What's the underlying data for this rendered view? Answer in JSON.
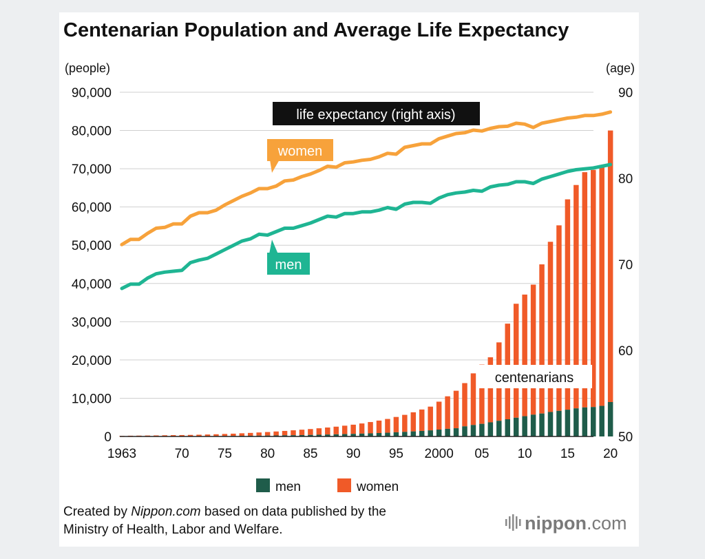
{
  "colors": {
    "women_bar": "#f05a28",
    "men_bar": "#1f5c4a",
    "women_line": "#f7a23b",
    "men_line": "#1fb593",
    "text": "#111111"
  },
  "chart_data": {
    "type": "bar+line",
    "title": "Centenarian Population and Average Life Expectancy",
    "left_unit": "(people)",
    "right_unit": "(age)",
    "left_ylim": [
      0,
      90000
    ],
    "right_ylim": [
      50,
      90
    ],
    "left_ticks": [
      "0",
      "10,000",
      "20,000",
      "30,000",
      "40,000",
      "50,000",
      "60,000",
      "70,000",
      "80,000",
      "90,000"
    ],
    "right_ticks": [
      "50",
      "60",
      "70",
      "80",
      "90"
    ],
    "x_tick_labels": [
      "1963",
      "70",
      "75",
      "80",
      "85",
      "90",
      "95",
      "2000",
      "05",
      "10",
      "15",
      "20"
    ],
    "x_tick_years": [
      1963,
      1970,
      1975,
      1980,
      1985,
      1990,
      1995,
      2000,
      2005,
      2010,
      2015,
      2020
    ],
    "years": [
      1963,
      1964,
      1965,
      1966,
      1967,
      1968,
      1969,
      1970,
      1971,
      1972,
      1973,
      1974,
      1975,
      1976,
      1977,
      1978,
      1979,
      1980,
      1981,
      1982,
      1983,
      1984,
      1985,
      1986,
      1987,
      1988,
      1989,
      1990,
      1991,
      1992,
      1993,
      1994,
      1995,
      1996,
      1997,
      1998,
      1999,
      2000,
      2001,
      2002,
      2003,
      2004,
      2005,
      2006,
      2007,
      2008,
      2009,
      2010,
      2011,
      2012,
      2013,
      2014,
      2015,
      2016,
      2017,
      2018,
      2019,
      2020
    ],
    "centenarians_men": [
      20,
      30,
      35,
      40,
      45,
      55,
      60,
      70,
      80,
      90,
      105,
      120,
      135,
      150,
      170,
      190,
      215,
      240,
      270,
      300,
      330,
      370,
      410,
      460,
      510,
      560,
      620,
      680,
      750,
      820,
      900,
      980,
      1100,
      1200,
      1320,
      1450,
      1600,
      1800,
      2000,
      2150,
      2650,
      3000,
      3300,
      3700,
      4100,
      4500,
      4900,
      5300,
      5700,
      6000,
      6400,
      6700,
      7000,
      7350,
      7600,
      7700,
      8000,
      9000
    ],
    "centenarians_women": [
      130,
      170,
      190,
      210,
      230,
      260,
      290,
      300,
      330,
      370,
      410,
      460,
      520,
      580,
      660,
      740,
      830,
      920,
      1030,
      1150,
      1280,
      1400,
      1530,
      1680,
      1830,
      2000,
      2200,
      2400,
      2650,
      2950,
      3250,
      3600,
      4000,
      4450,
      5000,
      5600,
      6200,
      7300,
      8500,
      9800,
      11300,
      13500,
      15500,
      17000,
      20500,
      25000,
      29800,
      31800,
      34000,
      39000,
      44500,
      48500,
      55000,
      58400,
      61500,
      62000,
      63000,
      71000
    ],
    "life_expectancy_women": [
      72.3,
      72.9,
      72.9,
      73.6,
      74.2,
      74.3,
      74.7,
      74.7,
      75.6,
      76.0,
      76.0,
      76.3,
      76.9,
      77.4,
      77.9,
      78.3,
      78.8,
      78.8,
      79.1,
      79.7,
      79.8,
      80.2,
      80.5,
      80.9,
      81.4,
      81.3,
      81.8,
      81.9,
      82.1,
      82.2,
      82.5,
      82.9,
      82.8,
      83.6,
      83.8,
      84.0,
      84.0,
      84.6,
      84.9,
      85.2,
      85.3,
      85.6,
      85.5,
      85.8,
      86.0,
      86.05,
      86.4,
      86.3,
      85.9,
      86.4,
      86.6,
      86.8,
      87.0,
      87.1,
      87.3,
      87.3,
      87.45,
      87.7
    ],
    "life_expectancy_men": [
      67.2,
      67.7,
      67.7,
      68.4,
      68.9,
      69.1,
      69.2,
      69.3,
      70.2,
      70.5,
      70.7,
      71.2,
      71.7,
      72.2,
      72.7,
      72.97,
      73.5,
      73.4,
      73.8,
      74.2,
      74.2,
      74.5,
      74.8,
      75.2,
      75.6,
      75.5,
      75.9,
      75.9,
      76.1,
      76.1,
      76.3,
      76.6,
      76.4,
      77.0,
      77.2,
      77.2,
      77.1,
      77.7,
      78.1,
      78.3,
      78.4,
      78.6,
      78.5,
      79.0,
      79.2,
      79.3,
      79.6,
      79.6,
      79.4,
      79.9,
      80.2,
      80.5,
      80.8,
      81.0,
      81.1,
      81.2,
      81.4,
      81.6
    ],
    "legend": [
      {
        "name": "men",
        "color": "#1f5c4a"
      },
      {
        "name": "women",
        "color": "#f05a28"
      }
    ],
    "legend_position": "bottom",
    "annotations": {
      "life_expectancy_label": "life expectancy (right axis)",
      "women_label": "women",
      "men_label": "men",
      "centenarians_label": "centenarians"
    }
  },
  "footer": {
    "credit_prefix": "Created by ",
    "credit_brand": "Nippon.com",
    "credit_suffix": " based on data published by the",
    "credit_line2": "Ministry of Health, Labor and Welfare.",
    "logo_main": "nippon",
    "logo_dot": ".",
    "logo_tld": "com"
  }
}
